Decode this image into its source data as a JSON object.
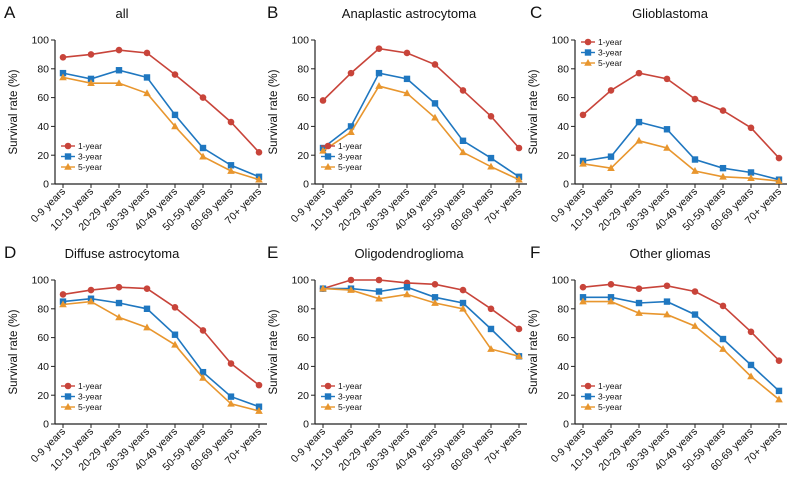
{
  "colors": {
    "1-year": "#c8443a",
    "3-year": "#1f77c0",
    "5-year": "#e8962e"
  },
  "chart_data": [
    {
      "letter": "A",
      "title": "all",
      "type": "line",
      "ylabel": "Survival rate (%)",
      "xlabel": "",
      "categories": [
        "0-9 years",
        "10-19 years",
        "20-29 years",
        "30-39 years",
        "40-49 years",
        "50-59 years",
        "60-69 years",
        "70+ years"
      ],
      "ylim": [
        0,
        100
      ],
      "yticks": [
        "0",
        "20",
        "40",
        "60",
        "80",
        "100"
      ],
      "legend_position": "bottom-left",
      "series": [
        {
          "name": "1-year",
          "marker": "circle",
          "values": [
            88,
            90,
            93,
            91,
            76,
            60,
            43,
            22
          ]
        },
        {
          "name": "3-year",
          "marker": "square",
          "values": [
            77,
            73,
            79,
            74,
            48,
            25,
            13,
            5
          ]
        },
        {
          "name": "5-year",
          "marker": "triangle",
          "values": [
            74,
            70,
            70,
            63,
            40,
            19,
            9,
            3
          ]
        }
      ]
    },
    {
      "letter": "B",
      "title": "Anaplastic astrocytoma",
      "type": "line",
      "ylabel": "Survival rate (%)",
      "xlabel": "",
      "categories": [
        "0-9 years",
        "10-19 years",
        "20-29 years",
        "30-39 years",
        "40-49 years",
        "50-59 years",
        "60-69 years",
        "70+ years"
      ],
      "ylim": [
        0,
        100
      ],
      "yticks": [
        "0",
        "20",
        "40",
        "60",
        "80",
        "100"
      ],
      "legend_position": "bottom-left",
      "series": [
        {
          "name": "1-year",
          "marker": "circle",
          "values": [
            58,
            77,
            94,
            91,
            83,
            65,
            47,
            25
          ]
        },
        {
          "name": "3-year",
          "marker": "square",
          "values": [
            25,
            40,
            77,
            73,
            56,
            30,
            18,
            5
          ]
        },
        {
          "name": "5-year",
          "marker": "triangle",
          "values": [
            23,
            36,
            68,
            63,
            46,
            22,
            12,
            3
          ]
        }
      ]
    },
    {
      "letter": "C",
      "title": "Glioblastoma",
      "type": "line",
      "ylabel": "Survival rate (%)",
      "xlabel": "",
      "categories": [
        "0-9 years",
        "10-19 years",
        "20-29 years",
        "30-39 years",
        "40-49 years",
        "50-59 years",
        "60-69 years",
        "70+ years"
      ],
      "ylim": [
        0,
        100
      ],
      "yticks": [
        "0",
        "20",
        "40",
        "60",
        "80",
        "100"
      ],
      "legend_position": "top-left",
      "series": [
        {
          "name": "1-year",
          "marker": "circle",
          "values": [
            48,
            65,
            77,
            73,
            59,
            51,
            39,
            18
          ]
        },
        {
          "name": "3-year",
          "marker": "square",
          "values": [
            16,
            19,
            43,
            38,
            17,
            11,
            8,
            3
          ]
        },
        {
          "name": "5-year",
          "marker": "triangle",
          "values": [
            14,
            11,
            30,
            25,
            9,
            5,
            4,
            2
          ]
        }
      ]
    },
    {
      "letter": "D",
      "title": "Diffuse astrocytoma",
      "type": "line",
      "ylabel": "Survival rate (%)",
      "xlabel": "",
      "categories": [
        "0-9 years",
        "10-19 years",
        "20-29 years",
        "30-39 years",
        "40-49 years",
        "50-59 years",
        "60-69 years",
        "70+ years"
      ],
      "ylim": [
        0,
        100
      ],
      "yticks": [
        "0",
        "20",
        "40",
        "60",
        "80",
        "100"
      ],
      "legend_position": "bottom-left",
      "series": [
        {
          "name": "1-year",
          "marker": "circle",
          "values": [
            90,
            93,
            95,
            94,
            81,
            65,
            42,
            27
          ]
        },
        {
          "name": "3-year",
          "marker": "square",
          "values": [
            85,
            87,
            84,
            80,
            62,
            36,
            19,
            12
          ]
        },
        {
          "name": "5-year",
          "marker": "triangle",
          "values": [
            83,
            85,
            74,
            67,
            55,
            32,
            14,
            9
          ]
        }
      ]
    },
    {
      "letter": "E",
      "title": "Oligodendroglioma",
      "type": "line",
      "ylabel": "Survival rate (%)",
      "xlabel": "",
      "categories": [
        "0-9 years",
        "10-19 years",
        "20-29 years",
        "30-39 years",
        "40-49 years",
        "50-59 years",
        "60-69 years",
        "70+ years"
      ],
      "ylim": [
        0,
        100
      ],
      "yticks": [
        "0",
        "20",
        "40",
        "60",
        "80",
        "100"
      ],
      "legend_position": "bottom-left",
      "series": [
        {
          "name": "1-year",
          "marker": "circle",
          "values": [
            94,
            100,
            100,
            98,
            97,
            93,
            80,
            66
          ]
        },
        {
          "name": "3-year",
          "marker": "square",
          "values": [
            94,
            94,
            92,
            95,
            88,
            84,
            66,
            47
          ]
        },
        {
          "name": "5-year",
          "marker": "triangle",
          "values": [
            94,
            93,
            87,
            90,
            84,
            80,
            52,
            47
          ]
        }
      ]
    },
    {
      "letter": "F",
      "title": "Other gliomas",
      "type": "line",
      "ylabel": "Survival rate (%)",
      "xlabel": "",
      "categories": [
        "0-9 years",
        "10-19 years",
        "20-29 years",
        "30-39 years",
        "40-49 years",
        "50-59 years",
        "60-69 years",
        "70+ years"
      ],
      "ylim": [
        0,
        100
      ],
      "yticks": [
        "0",
        "20",
        "40",
        "60",
        "80",
        "100"
      ],
      "legend_position": "bottom-left",
      "series": [
        {
          "name": "1-year",
          "marker": "circle",
          "values": [
            95,
            97,
            94,
            96,
            92,
            82,
            64,
            44
          ]
        },
        {
          "name": "3-year",
          "marker": "square",
          "values": [
            88,
            88,
            84,
            85,
            76,
            59,
            41,
            23
          ]
        },
        {
          "name": "5-year",
          "marker": "triangle",
          "values": [
            85,
            85,
            77,
            76,
            68,
            52,
            33,
            17
          ]
        }
      ]
    }
  ]
}
